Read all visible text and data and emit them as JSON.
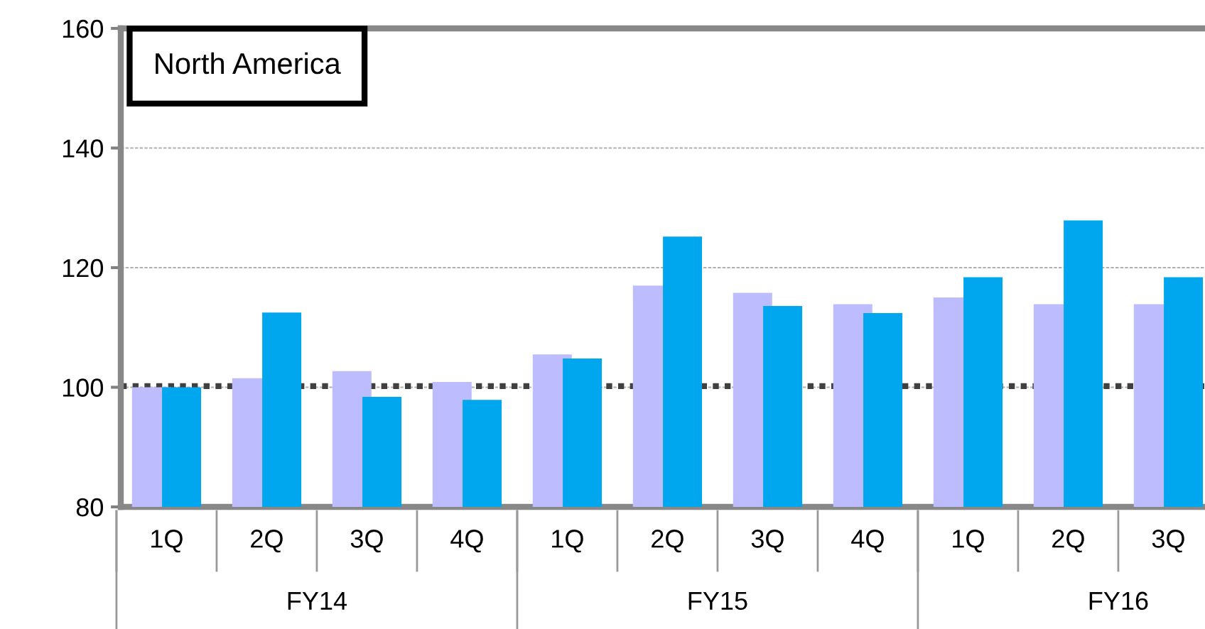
{
  "chart_data": {
    "type": "bar",
    "title": "North America",
    "categories": [
      "1Q",
      "2Q",
      "3Q",
      "4Q",
      "1Q",
      "2Q",
      "3Q",
      "4Q",
      "1Q",
      "2Q",
      "3Q"
    ],
    "series": [
      {
        "color": "#bcbcff",
        "values": [
          100.0,
          101.5,
          102.7,
          100.9,
          105.5,
          117.0,
          115.8,
          113.9,
          115.0,
          113.9,
          113.9
        ]
      },
      {
        "color": "#00a6ee",
        "values": [
          100.0,
          112.5,
          98.4,
          97.9,
          104.8,
          125.2,
          113.6,
          112.4,
          118.4,
          127.9,
          118.4
        ]
      }
    ],
    "annotations": [
      "FY14",
      "FY15",
      "FY16"
    ],
    "ylim": [
      80,
      160
    ],
    "yticks": [
      80,
      100,
      120,
      140,
      160
    ],
    "ref_lines": [
      {
        "axis": "y",
        "value": 100.2,
        "color": "#404040",
        "line_style": "dotted"
      }
    ],
    "grid": "y",
    "legend": false
  }
}
